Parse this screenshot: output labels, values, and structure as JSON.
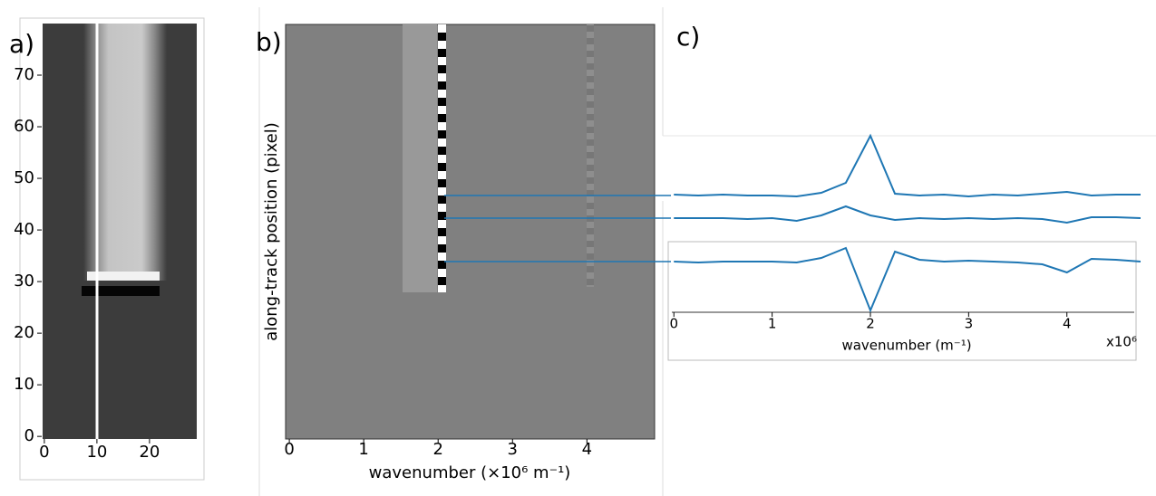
{
  "chart_data": [
    {
      "type": "image",
      "label": "a)",
      "xlim": [
        -0.5,
        29.5
      ],
      "ylim": [
        -0.5,
        80
      ],
      "xticks": [
        0,
        10,
        20
      ],
      "yticks": [
        0,
        10,
        20,
        30,
        40,
        50,
        60,
        70
      ]
    },
    {
      "type": "image",
      "label": "b)",
      "xlabel": "wavenumber (×10⁶   m⁻¹)",
      "ylabel": "along-track position (pixel)",
      "xlim": [
        -0.05,
        4.91
      ],
      "xticks": [
        0,
        1,
        2,
        3,
        4
      ]
    },
    {
      "type": "line",
      "label": "c)",
      "xlabel": "wavenumber (m⁻¹)",
      "multiplier": "x10⁶",
      "xlim": [
        -0.03,
        4.75
      ],
      "xticks": [
        0,
        1,
        2,
        3,
        4
      ],
      "x": [
        0,
        0.25,
        0.5,
        0.75,
        1,
        1.25,
        1.5,
        1.75,
        2,
        2.25,
        2.5,
        2.75,
        3,
        3.25,
        3.5,
        3.75,
        4,
        4.25,
        4.5,
        4.75
      ],
      "series": [
        {
          "color": "#1f77b4",
          "values": [
            0.1,
            0,
            0.1,
            0,
            0,
            -0.1,
            0.3,
            1.4,
            6.6,
            0.2,
            0,
            0.1,
            -0.1,
            0.1,
            0,
            0.2,
            0.4,
            0,
            0.1,
            0.1
          ]
        },
        {
          "color": "#1f77b4",
          "values": [
            0,
            0,
            0,
            -0.1,
            0,
            -0.3,
            0.3,
            1.3,
            0.3,
            -0.2,
            0,
            -0.1,
            0,
            -0.1,
            0,
            -0.1,
            -0.5,
            0.1,
            0.1,
            0
          ]
        },
        {
          "color": "#1f77b4",
          "values": [
            0,
            -0.1,
            0,
            0,
            0,
            -0.1,
            0.4,
            1.5,
            -5.4,
            1.1,
            0.2,
            0,
            0.1,
            0,
            -0.1,
            -0.3,
            -1.2,
            0.3,
            0.2,
            0
          ]
        }
      ]
    }
  ]
}
